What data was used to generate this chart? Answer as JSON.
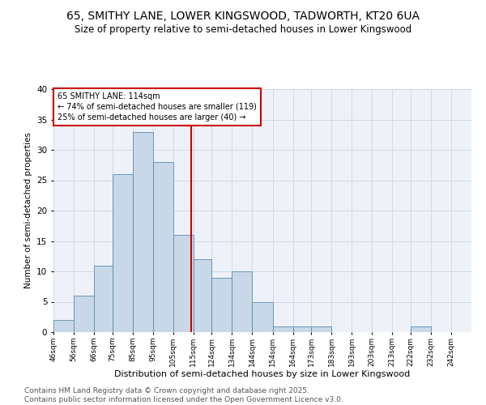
{
  "title1": "65, SMITHY LANE, LOWER KINGSWOOD, TADWORTH, KT20 6UA",
  "title2": "Size of property relative to semi-detached houses in Lower Kingswood",
  "xlabel": "Distribution of semi-detached houses by size in Lower Kingswood",
  "ylabel": "Number of semi-detached properties",
  "bin_labels": [
    "46sqm",
    "56sqm",
    "66sqm",
    "75sqm",
    "85sqm",
    "95sqm",
    "105sqm",
    "115sqm",
    "124sqm",
    "134sqm",
    "144sqm",
    "154sqm",
    "164sqm",
    "173sqm",
    "183sqm",
    "193sqm",
    "203sqm",
    "213sqm",
    "222sqm",
    "232sqm",
    "242sqm"
  ],
  "bin_edges": [
    46,
    56,
    66,
    75,
    85,
    95,
    105,
    115,
    124,
    134,
    144,
    154,
    164,
    173,
    183,
    193,
    203,
    213,
    222,
    232,
    242
  ],
  "values": [
    2,
    6,
    11,
    26,
    33,
    28,
    16,
    12,
    9,
    10,
    5,
    1,
    1,
    1,
    0,
    0,
    0,
    0,
    1,
    0,
    0
  ],
  "bar_color": "#c8d8e8",
  "bar_edge_color": "#5a8ab0",
  "vline_x": 114,
  "vline_color": "#cc0000",
  "annotation_text": "65 SMITHY LANE: 114sqm\n← 74% of semi-detached houses are smaller (119)\n25% of semi-detached houses are larger (40) →",
  "annotation_box_color": "#ffffff",
  "annotation_box_edge": "#cc0000",
  "ylim": [
    0,
    40
  ],
  "yticks": [
    0,
    5,
    10,
    15,
    20,
    25,
    30,
    35,
    40
  ],
  "grid_color": "#d0d8e8",
  "bg_color": "#eef2f8",
  "footer": "Contains HM Land Registry data © Crown copyright and database right 2025.\nContains public sector information licensed under the Open Government Licence v3.0.",
  "title1_fontsize": 10,
  "title2_fontsize": 8.5,
  "xlabel_fontsize": 8,
  "ylabel_fontsize": 7.5,
  "footer_fontsize": 6.5
}
